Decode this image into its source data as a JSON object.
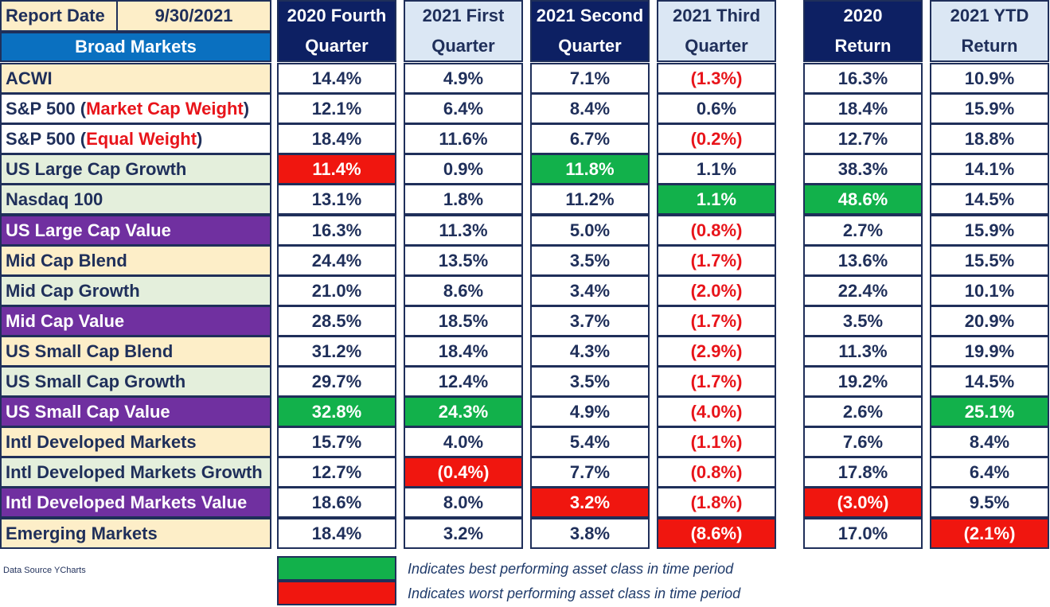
{
  "report": {
    "label": "Report Date",
    "date": "9/30/2021",
    "section": "Broad Markets"
  },
  "columns": [
    {
      "line1": "2020 Fourth",
      "line2": "Quarter"
    },
    {
      "line1": "2021 First",
      "line2": "Quarter"
    },
    {
      "line1": "2021 Second",
      "line2": "Quarter"
    },
    {
      "line1": "2021 Third",
      "line2": "Quarter"
    },
    {
      "line1": "2020",
      "line2": "Return"
    },
    {
      "line1": "2021 YTD",
      "line2": "Return"
    }
  ],
  "rows": [
    {
      "name": "ACWI",
      "values": [
        "14.4%",
        "4.9%",
        "7.1%",
        "(1.3%)",
        "16.3%",
        "10.9%"
      ]
    },
    {
      "name": "S&P 500 (",
      "name_red": "Market Cap Weight",
      "name_end": ")",
      "values": [
        "12.1%",
        "6.4%",
        "8.4%",
        "0.6%",
        "18.4%",
        "15.9%"
      ]
    },
    {
      "name": "S&P 500 (",
      "name_red": "Equal Weight",
      "name_end": ")",
      "values": [
        "18.4%",
        "11.6%",
        "6.7%",
        "(0.2%)",
        "12.7%",
        "18.8%"
      ]
    },
    {
      "name": "US Large Cap Growth",
      "values": [
        "11.4%",
        "0.9%",
        "11.8%",
        "1.1%",
        "38.3%",
        "14.1%"
      ]
    },
    {
      "name": "Nasdaq 100",
      "values": [
        "13.1%",
        "1.8%",
        "11.2%",
        "1.1%",
        "48.6%",
        "14.5%"
      ]
    },
    {
      "name": "US Large Cap Value",
      "values": [
        "16.3%",
        "11.3%",
        "5.0%",
        "(0.8%)",
        "2.7%",
        "15.9%"
      ]
    },
    {
      "name": "Mid Cap Blend",
      "values": [
        "24.4%",
        "13.5%",
        "3.5%",
        "(1.7%)",
        "13.6%",
        "15.5%"
      ]
    },
    {
      "name": "Mid Cap Growth",
      "values": [
        "21.0%",
        "8.6%",
        "3.4%",
        "(2.0%)",
        "22.4%",
        "10.1%"
      ]
    },
    {
      "name": "Mid Cap Value",
      "values": [
        "28.5%",
        "18.5%",
        "3.7%",
        "(1.7%)",
        "3.5%",
        "20.9%"
      ]
    },
    {
      "name": "US Small Cap Blend",
      "values": [
        "31.2%",
        "18.4%",
        "4.3%",
        "(2.9%)",
        "11.3%",
        "19.9%"
      ]
    },
    {
      "name": "US Small Cap Growth",
      "values": [
        "29.7%",
        "12.4%",
        "3.5%",
        "(1.7%)",
        "19.2%",
        "14.5%"
      ]
    },
    {
      "name": "US Small Cap Value",
      "values": [
        "32.8%",
        "24.3%",
        "4.9%",
        "(4.0%)",
        "2.6%",
        "25.1%"
      ]
    },
    {
      "name": "Intl  Developed Markets",
      "values": [
        "15.7%",
        "4.0%",
        "5.4%",
        "(1.1%)",
        "7.6%",
        "8.4%"
      ]
    },
    {
      "name": "Intl  Developed Markets Growth",
      "values": [
        "12.7%",
        "(0.4%)",
        "7.7%",
        "(0.8%)",
        "17.8%",
        "6.4%"
      ]
    },
    {
      "name": "Intl  Developed Markets Value",
      "values": [
        "18.6%",
        "8.0%",
        "3.2%",
        "(1.8%)",
        "(3.0%)",
        "9.5%"
      ]
    },
    {
      "name": "Emerging Markets",
      "values": [
        "18.4%",
        "3.2%",
        "3.8%",
        "(8.6%)",
        "17.0%",
        "(2.1%)"
      ]
    }
  ],
  "legend": {
    "best": "Indicates best performing asset class in time period",
    "worst": "Indicates worst performing asset class in time period"
  },
  "source": "Data Source YCharts",
  "colors": {
    "best": "#12b14b",
    "worst": "#f0160f",
    "header_dark": "#0d2063",
    "header_light": "#dbe7f4",
    "purple": "#7030a0",
    "yellow": "#fdeec8",
    "light_green": "#e4efdc"
  }
}
